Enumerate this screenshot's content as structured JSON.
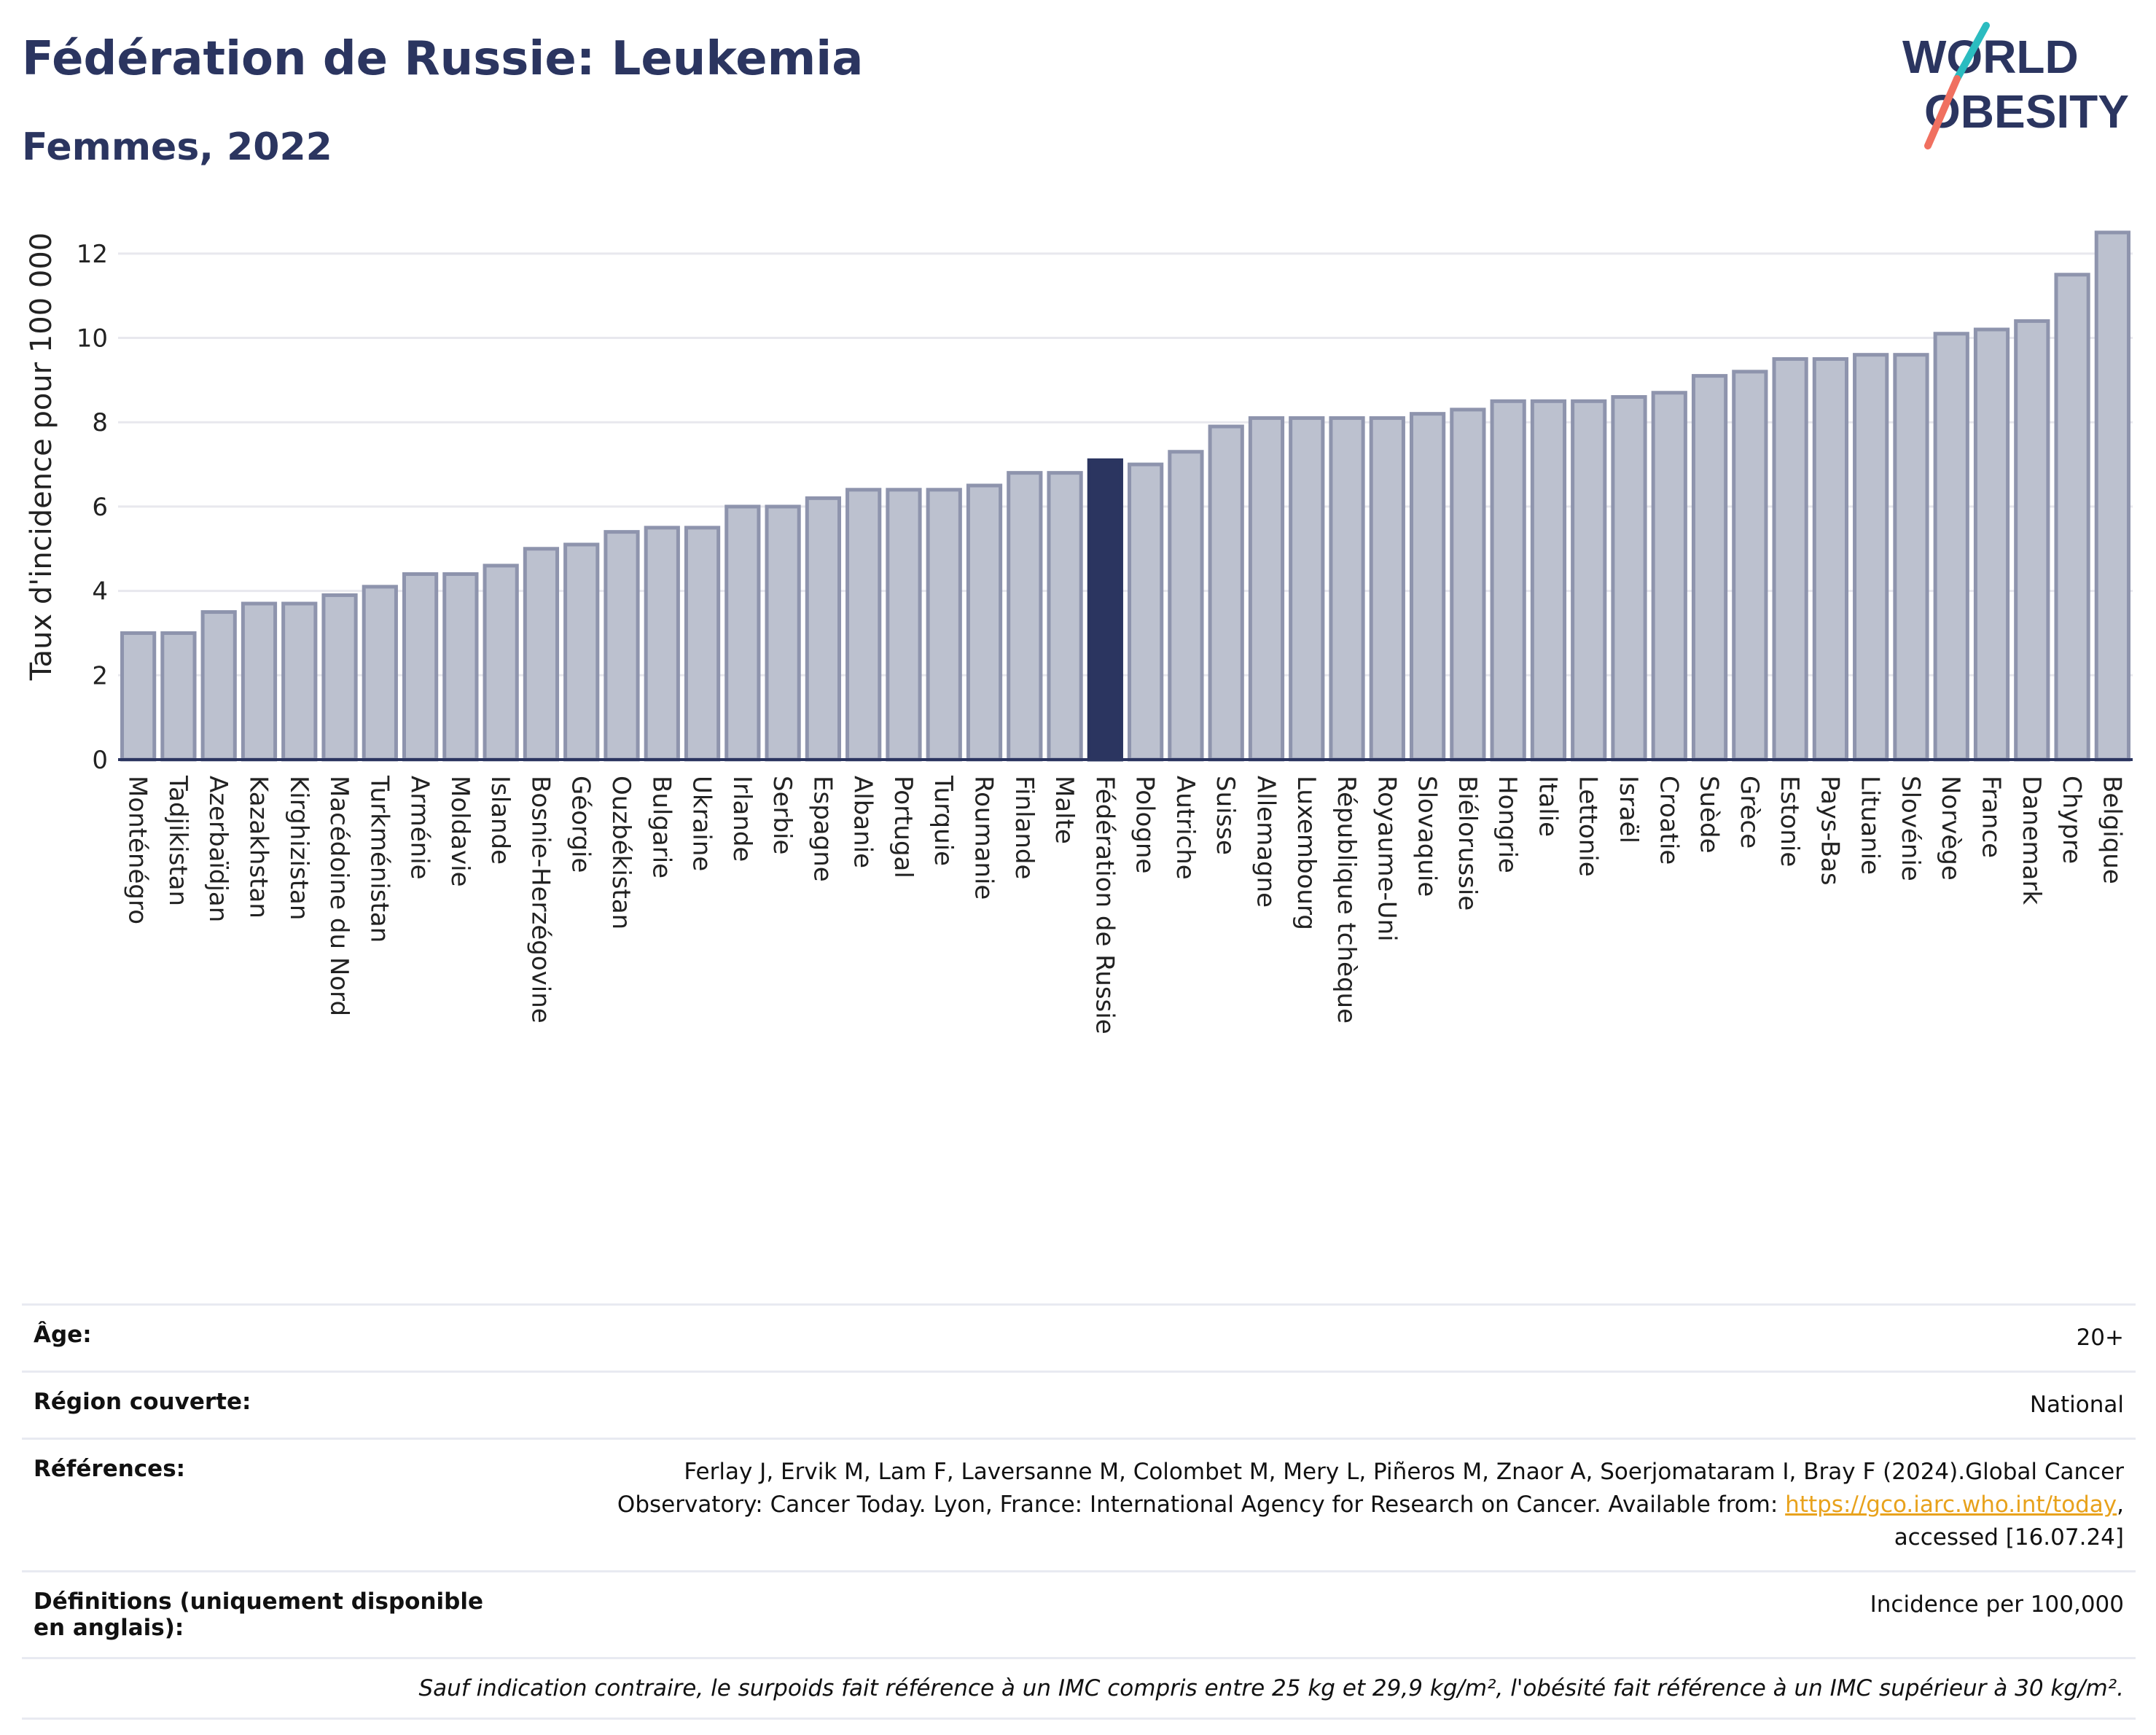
{
  "title": "Fédération de Russie: Leukemia",
  "subtitle": "Femmes, 2022",
  "logo": {
    "line1": "WORLD",
    "line2": "OBESITY"
  },
  "colors": {
    "title": "#2b3560",
    "bar": "#bcc1cf",
    "bar_edge": "#8e94ad",
    "highlight": "#2b3560",
    "grid": "#e8e8ee",
    "link": "#e8a21c",
    "logo_teal": "#2bbcc0",
    "logo_coral": "#f07060"
  },
  "chart_data": {
    "type": "bar",
    "ylabel": "Taux d'incidence pour 100 000",
    "xlabel": "",
    "ylim": [
      0,
      13
    ],
    "yticks": [
      0,
      2,
      4,
      6,
      8,
      10,
      12
    ],
    "grid": true,
    "highlight": "Fédération de Russie",
    "categories": [
      "Monténégro",
      "Tadjikistan",
      "Azerbaïdjan",
      "Kazakhstan",
      "Kirghizistan",
      "Macédoine du Nord",
      "Turkménistan",
      "Arménie",
      "Moldavie",
      "Islande",
      "Bosnie-Herzégovine",
      "Géorgie",
      "Ouzbékistan",
      "Bulgarie",
      "Ukraine",
      "Irlande",
      "Serbie",
      "Espagne",
      "Albanie",
      "Portugal",
      "Turquie",
      "Roumanie",
      "Finlande",
      "Malte",
      "Fédération de Russie",
      "Pologne",
      "Autriche",
      "Suisse",
      "Allemagne",
      "Luxembourg",
      "République tchèque",
      "Royaume-Uni",
      "Slovaquie",
      "Biélorussie",
      "Hongrie",
      "Italie",
      "Lettonie",
      "Israël",
      "Croatie",
      "Suède",
      "Grèce",
      "Estonie",
      "Pays-Bas",
      "Lituanie",
      "Slovénie",
      "Norvège",
      "France",
      "Danemark",
      "Chypre",
      "Belgique"
    ],
    "values": [
      3.0,
      3.0,
      3.5,
      3.7,
      3.7,
      3.9,
      4.1,
      4.4,
      4.4,
      4.6,
      5.0,
      5.1,
      5.4,
      5.5,
      5.5,
      6.0,
      6.0,
      6.2,
      6.4,
      6.4,
      6.4,
      6.5,
      6.8,
      6.8,
      7.1,
      7.0,
      7.3,
      7.9,
      8.1,
      8.1,
      8.1,
      8.1,
      8.2,
      8.3,
      8.5,
      8.5,
      8.5,
      8.6,
      8.7,
      9.1,
      9.2,
      9.5,
      9.5,
      9.6,
      9.6,
      10.1,
      10.2,
      10.4,
      11.5,
      12.5
    ]
  },
  "info": {
    "age_label": "Âge:",
    "age_value": "20+",
    "region_label": "Région couverte:",
    "region_value": "National",
    "refs_label": "Références:",
    "refs_text_1": "Ferlay J, Ervik M, Lam F, Laversanne M, Colombet M, Mery L, Piñeros M, Znaor A, Soerjomataram I, Bray F (2024).Global Cancer",
    "refs_text_2": "Observatory: Cancer Today. Lyon, France: International Agency for Research on Cancer. Available from:",
    "refs_link": "https://gco.iarc.who.int/today",
    "refs_text_3": "accessed [16.07.24]",
    "defs_label": "Définitions (uniquement disponible en anglais):",
    "defs_value": "Incidence per 100,000",
    "note": "Sauf indication contraire, le surpoids fait référence à un IMC compris entre 25 kg et 29,9 kg/m², l'obésité fait référence à un IMC supérieur à 30 kg/m²."
  }
}
